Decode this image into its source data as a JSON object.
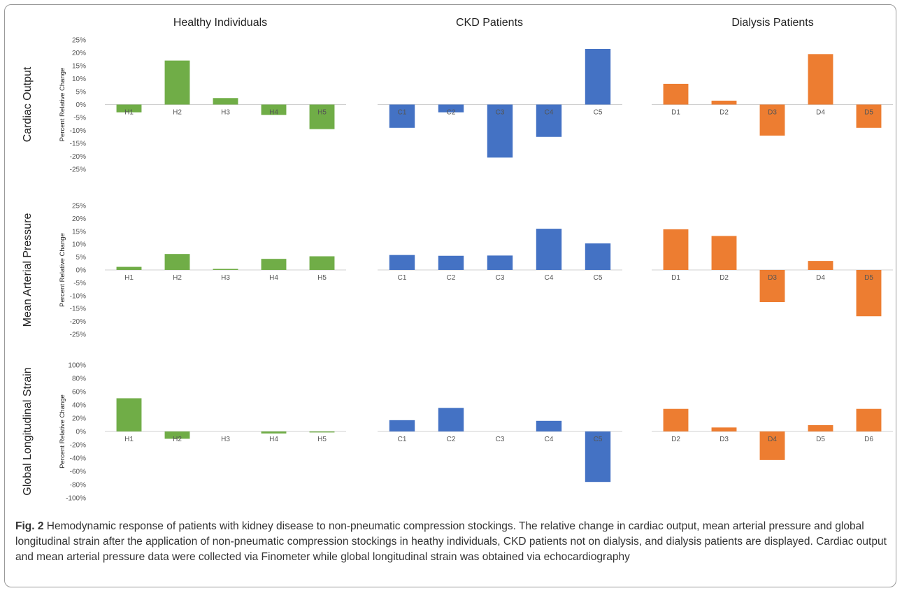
{
  "column_titles": [
    "Healthy Individuals",
    "CKD Patients",
    "Dialysis Patients"
  ],
  "row_titles": [
    "Cardiac Output",
    "Mean Arterial Pressure",
    "Global Longitudinal Strain"
  ],
  "y_axis_label": "Percent Relative Change",
  "colors": {
    "healthy": "#70ad47",
    "ckd": "#4472c4",
    "dialysis": "#ed7d31"
  },
  "caption": {
    "fig_label": "Fig. 2",
    "text": " Hemodynamic response of patients with kidney disease to non-pneumatic compression stockings. The relative change in cardiac output, mean arterial pressure and global longitudinal strain after the application of non-pneumatic compression stockings in heathy individuals, CKD patients not on dialysis, and dialysis patients are displayed. Cardiac output and mean arterial pressure data were collected via Finometer while global longitudinal strain was obtained via echocardiography"
  },
  "chart_data": [
    {
      "type": "bar",
      "row": "Cardiac Output",
      "column": "Healthy Individuals",
      "color": "#70ad47",
      "ylabel": "Percent Relative Change",
      "ylim": [
        -25,
        25
      ],
      "yticks": [
        25,
        20,
        15,
        10,
        5,
        0,
        -5,
        -10,
        -15,
        -20,
        -25
      ],
      "tick_suffix": "%",
      "categories": [
        "H1",
        "H2",
        "H3",
        "H4",
        "H5"
      ],
      "values": [
        -3,
        17,
        2.5,
        -4,
        -9.5
      ]
    },
    {
      "type": "bar",
      "row": "Cardiac Output",
      "column": "CKD Patients",
      "color": "#4472c4",
      "ylim": [
        -25,
        25
      ],
      "categories": [
        "C1",
        "C2",
        "C3",
        "C4",
        "C5"
      ],
      "values": [
        -9,
        -3,
        -20.5,
        -12.5,
        21.5
      ]
    },
    {
      "type": "bar",
      "row": "Cardiac Output",
      "column": "Dialysis Patients",
      "color": "#ed7d31",
      "ylim": [
        -25,
        25
      ],
      "categories": [
        "D1",
        "D2",
        "D3",
        "D4",
        "D5"
      ],
      "values": [
        8,
        1.5,
        -12,
        19.5,
        -9
      ]
    },
    {
      "type": "bar",
      "row": "Mean Arterial Pressure",
      "column": "Healthy Individuals",
      "color": "#70ad47",
      "ylabel": "Percent Relative Change",
      "ylim": [
        -25,
        25
      ],
      "yticks": [
        25,
        20,
        15,
        10,
        5,
        0,
        -5,
        -10,
        -15,
        -20,
        -25
      ],
      "tick_suffix": "%",
      "categories": [
        "H1",
        "H2",
        "H3",
        "H4",
        "H5"
      ],
      "values": [
        1.2,
        6.2,
        0.4,
        4.3,
        5.3
      ]
    },
    {
      "type": "bar",
      "row": "Mean Arterial Pressure",
      "column": "CKD Patients",
      "color": "#4472c4",
      "ylim": [
        -25,
        25
      ],
      "categories": [
        "C1",
        "C2",
        "C3",
        "C4",
        "C5"
      ],
      "values": [
        5.8,
        5.5,
        5.6,
        16,
        10.3
      ]
    },
    {
      "type": "bar",
      "row": "Mean Arterial Pressure",
      "column": "Dialysis Patients",
      "color": "#ed7d31",
      "ylim": [
        -25,
        25
      ],
      "categories": [
        "D1",
        "D2",
        "D3",
        "D4",
        "D5"
      ],
      "values": [
        15.8,
        13.2,
        -12.5,
        3.5,
        -18
      ]
    },
    {
      "type": "bar",
      "row": "Global Longitudinal Strain",
      "column": "Healthy Individuals",
      "color": "#70ad47",
      "ylabel": "Percent Relative Change",
      "ylim": [
        -100,
        100
      ],
      "yticks": [
        100,
        80,
        60,
        40,
        20,
        0,
        -20,
        -40,
        -60,
        -80,
        -100
      ],
      "tick_suffix": "%",
      "categories": [
        "H1",
        "H2",
        "H3",
        "H4",
        "H5"
      ],
      "values": [
        50,
        -11,
        0,
        -3,
        -1.5
      ]
    },
    {
      "type": "bar",
      "row": "Global Longitudinal Strain",
      "column": "CKD Patients",
      "color": "#4472c4",
      "ylim": [
        -100,
        100
      ],
      "categories": [
        "C1",
        "C2",
        "C3",
        "C4",
        "C5"
      ],
      "values": [
        17,
        35.5,
        0,
        16,
        -76
      ]
    },
    {
      "type": "bar",
      "row": "Global Longitudinal Strain",
      "column": "Dialysis Patients",
      "color": "#ed7d31",
      "ylim": [
        -100,
        100
      ],
      "categories": [
        "D2",
        "D3",
        "D4",
        "D5",
        "D6"
      ],
      "values": [
        34,
        6,
        -43,
        9.5,
        34
      ]
    }
  ]
}
